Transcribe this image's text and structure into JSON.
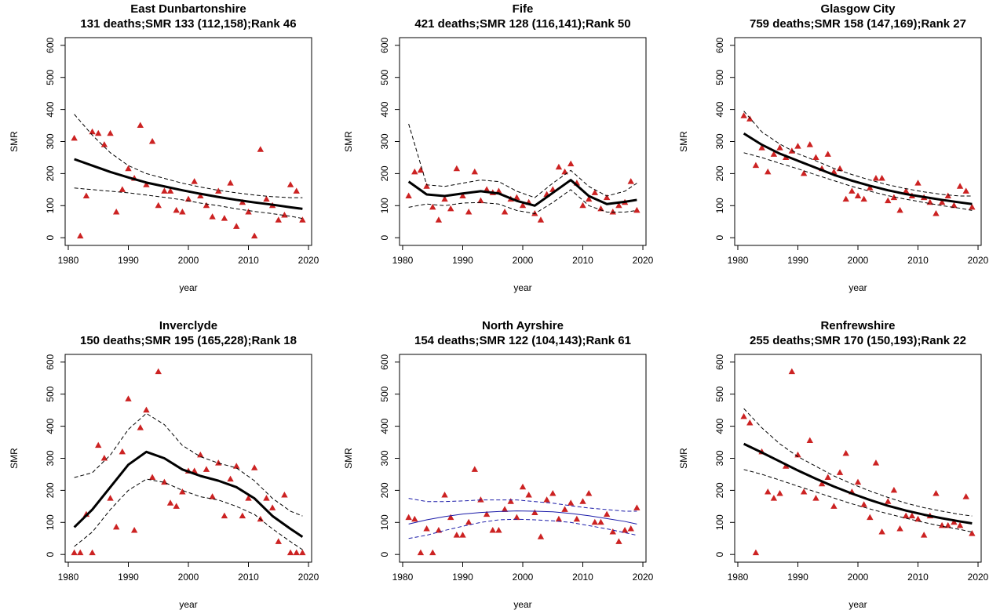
{
  "chart_data": [
    {
      "type": "scatter",
      "title": "East Dunbartonshire",
      "subtitle": "131 deaths;SMR 133 (112,158);Rank 46",
      "xlabel": "year",
      "ylabel": "SMR",
      "marker_color": "#cc2222",
      "x": [
        1981,
        1982,
        1983,
        1984,
        1985,
        1986,
        1987,
        1988,
        1989,
        1990,
        1991,
        1992,
        1993,
        1994,
        1995,
        1996,
        1997,
        1998,
        1999,
        2000,
        2001,
        2002,
        2003,
        2004,
        2005,
        2006,
        2007,
        2008,
        2009,
        2010,
        2011,
        2012,
        2013,
        2014,
        2015,
        2016,
        2017,
        2018,
        2019
      ],
      "values": [
        310,
        5,
        130,
        330,
        325,
        290,
        325,
        80,
        150,
        215,
        185,
        350,
        165,
        300,
        100,
        145,
        145,
        85,
        80,
        120,
        175,
        130,
        100,
        65,
        145,
        60,
        170,
        35,
        110,
        80,
        5,
        275,
        120,
        100,
        55,
        70,
        165,
        145,
        55
      ],
      "fit": {
        "x": [
          1981,
          1984,
          1987,
          1990,
          1993,
          1996,
          1999,
          2002,
          2005,
          2008,
          2011,
          2014,
          2017,
          2019
        ],
        "series": [
          {
            "color": "#000000",
            "width": 3,
            "dash": false,
            "values": [
              245,
              225,
              205,
              188,
              172,
              160,
              148,
              137,
              127,
              118,
              110,
              103,
              95,
              90
            ]
          },
          {
            "color": "#000000",
            "width": 1,
            "dash": true,
            "values": [
              385,
              320,
              265,
              225,
              200,
              185,
              170,
              158,
              148,
              140,
              133,
              128,
              125,
              125
            ]
          },
          {
            "color": "#000000",
            "width": 1,
            "dash": true,
            "values": [
              155,
              150,
              145,
              140,
              133,
              126,
              118,
              108,
              100,
              90,
              82,
              75,
              67,
              60
            ]
          }
        ]
      },
      "xlim": [
        1979.48,
        2020.52
      ],
      "ylim": [
        -24,
        624
      ],
      "xticks": [
        1980,
        1990,
        2000,
        2010,
        2020
      ],
      "yticks": [
        0,
        100,
        200,
        300,
        400,
        500,
        600
      ]
    },
    {
      "type": "scatter",
      "title": "Fife",
      "subtitle": "421 deaths;SMR 128 (116,141);Rank 50",
      "xlabel": "year",
      "ylabel": "SMR",
      "marker_color": "#cc2222",
      "x": [
        1981,
        1982,
        1983,
        1984,
        1985,
        1986,
        1987,
        1988,
        1989,
        1990,
        1991,
        1992,
        1993,
        1994,
        1995,
        1996,
        1997,
        1998,
        1999,
        2000,
        2001,
        2002,
        2003,
        2004,
        2005,
        2006,
        2007,
        2008,
        2009,
        2010,
        2011,
        2012,
        2013,
        2014,
        2015,
        2016,
        2017,
        2018,
        2019
      ],
      "values": [
        130,
        205,
        210,
        160,
        95,
        55,
        120,
        90,
        215,
        130,
        80,
        205,
        115,
        150,
        140,
        145,
        80,
        120,
        125,
        100,
        110,
        75,
        55,
        135,
        150,
        220,
        205,
        230,
        170,
        100,
        120,
        140,
        90,
        125,
        80,
        100,
        110,
        175,
        85
      ],
      "fit": {
        "x": [
          1981,
          1984,
          1987,
          1990,
          1993,
          1996,
          1999,
          2002,
          2005,
          2008,
          2011,
          2014,
          2017,
          2019
        ],
        "series": [
          {
            "color": "#000000",
            "width": 3,
            "dash": false,
            "values": [
              175,
              135,
              130,
              138,
              145,
              138,
              115,
              100,
              140,
              180,
              130,
              105,
              112,
              118
            ]
          },
          {
            "color": "#000000",
            "width": 1,
            "dash": true,
            "values": [
              355,
              165,
              160,
              170,
              180,
              175,
              145,
              125,
              170,
              210,
              160,
              130,
              145,
              170
            ]
          },
          {
            "color": "#000000",
            "width": 1,
            "dash": true,
            "values": [
              95,
              105,
              100,
              108,
              110,
              105,
              85,
              75,
              110,
              150,
              100,
              80,
              80,
              85
            ]
          }
        ]
      },
      "xlim": [
        1979.48,
        2020.52
      ],
      "ylim": [
        -24,
        624
      ],
      "xticks": [
        1980,
        1990,
        2000,
        2010,
        2020
      ],
      "yticks": [
        0,
        100,
        200,
        300,
        400,
        500,
        600
      ]
    },
    {
      "type": "scatter",
      "title": "Glasgow City",
      "subtitle": "759 deaths;SMR 158 (147,169);Rank 27",
      "xlabel": "year",
      "ylabel": "SMR",
      "marker_color": "#cc2222",
      "x": [
        1981,
        1982,
        1983,
        1984,
        1985,
        1986,
        1987,
        1988,
        1989,
        1990,
        1991,
        1992,
        1993,
        1994,
        1995,
        1996,
        1997,
        1998,
        1999,
        2000,
        2001,
        2002,
        2003,
        2004,
        2005,
        2006,
        2007,
        2008,
        2009,
        2010,
        2011,
        2012,
        2013,
        2014,
        2015,
        2016,
        2017,
        2018,
        2019
      ],
      "values": [
        380,
        370,
        225,
        280,
        205,
        260,
        280,
        250,
        270,
        285,
        200,
        290,
        250,
        215,
        260,
        205,
        215,
        120,
        145,
        130,
        120,
        155,
        185,
        185,
        115,
        125,
        85,
        145,
        130,
        170,
        125,
        110,
        75,
        110,
        130,
        100,
        160,
        145,
        95
      ],
      "fit": {
        "x": [
          1981,
          1984,
          1987,
          1990,
          1993,
          1996,
          1999,
          2002,
          2005,
          2008,
          2011,
          2014,
          2017,
          2019
        ],
        "series": [
          {
            "color": "#000000",
            "width": 3,
            "dash": false,
            "values": [
              325,
              290,
              262,
              240,
              218,
              196,
              178,
              162,
              148,
              136,
              127,
              118,
              110,
              105
            ]
          },
          {
            "color": "#000000",
            "width": 1,
            "dash": true,
            "values": [
              395,
              330,
              292,
              262,
              240,
              216,
              197,
              180,
              165,
              153,
              143,
              135,
              130,
              130
            ]
          },
          {
            "color": "#000000",
            "width": 1,
            "dash": true,
            "values": [
              265,
              250,
              232,
              215,
              196,
              178,
              160,
              145,
              131,
              120,
              110,
              100,
              92,
              85
            ]
          }
        ]
      },
      "xlim": [
        1979.48,
        2020.52
      ],
      "ylim": [
        -24,
        624
      ],
      "xticks": [
        1980,
        1990,
        2000,
        2010,
        2020
      ],
      "yticks": [
        0,
        100,
        200,
        300,
        400,
        500,
        600
      ]
    },
    {
      "type": "scatter",
      "title": "Inverclyde",
      "subtitle": "150 deaths;SMR 195 (165,228);Rank 18",
      "xlabel": "year",
      "ylabel": "SMR",
      "marker_color": "#cc2222",
      "x": [
        1981,
        1982,
        1983,
        1984,
        1985,
        1986,
        1987,
        1988,
        1989,
        1990,
        1991,
        1992,
        1993,
        1994,
        1995,
        1996,
        1997,
        1998,
        1999,
        2000,
        2001,
        2002,
        2003,
        2004,
        2005,
        2006,
        2007,
        2008,
        2009,
        2010,
        2011,
        2012,
        2013,
        2014,
        2015,
        2016,
        2017,
        2018,
        2019
      ],
      "values": [
        5,
        5,
        125,
        5,
        340,
        300,
        175,
        85,
        320,
        485,
        75,
        395,
        450,
        240,
        570,
        225,
        160,
        150,
        195,
        260,
        260,
        310,
        265,
        180,
        285,
        120,
        235,
        275,
        120,
        175,
        270,
        110,
        175,
        145,
        40,
        185,
        5,
        5,
        5
      ],
      "fit": {
        "x": [
          1981,
          1984,
          1987,
          1990,
          1993,
          1996,
          1999,
          2002,
          2005,
          2008,
          2011,
          2014,
          2017,
          2019
        ],
        "series": [
          {
            "color": "#000000",
            "width": 3,
            "dash": false,
            "values": [
              85,
              140,
              210,
              280,
              320,
              300,
              265,
              245,
              230,
              210,
              175,
              120,
              80,
              55
            ]
          },
          {
            "color": "#000000",
            "width": 1,
            "dash": true,
            "values": [
              240,
              255,
              310,
              390,
              440,
              405,
              340,
              305,
              285,
              270,
              230,
              175,
              135,
              120
            ]
          },
          {
            "color": "#000000",
            "width": 1,
            "dash": true,
            "values": [
              25,
              70,
              140,
              200,
              235,
              225,
              200,
              180,
              170,
              150,
              125,
              80,
              40,
              15
            ]
          }
        ]
      },
      "xlim": [
        1979.48,
        2020.52
      ],
      "ylim": [
        -24,
        624
      ],
      "xticks": [
        1980,
        1990,
        2000,
        2010,
        2020
      ],
      "yticks": [
        0,
        100,
        200,
        300,
        400,
        500,
        600
      ]
    },
    {
      "type": "scatter",
      "title": "North Ayrshire",
      "subtitle": "154 deaths;SMR 122 (104,143);Rank 61",
      "xlabel": "year",
      "ylabel": "SMR",
      "marker_color": "#cc2222",
      "x": [
        1981,
        1982,
        1983,
        1984,
        1985,
        1986,
        1987,
        1988,
        1989,
        1990,
        1991,
        1992,
        1993,
        1994,
        1995,
        1996,
        1997,
        1998,
        1999,
        2000,
        2001,
        2002,
        2003,
        2004,
        2005,
        2006,
        2007,
        2008,
        2009,
        2010,
        2011,
        2012,
        2013,
        2014,
        2015,
        2016,
        2017,
        2018,
        2019
      ],
      "values": [
        115,
        110,
        5,
        80,
        5,
        75,
        185,
        115,
        60,
        60,
        100,
        265,
        170,
        125,
        75,
        75,
        140,
        165,
        115,
        210,
        185,
        130,
        55,
        170,
        190,
        110,
        140,
        160,
        110,
        165,
        190,
        100,
        100,
        125,
        70,
        40,
        75,
        80,
        145
      ],
      "fit": {
        "x": [
          1981,
          1984,
          1987,
          1990,
          1993,
          1996,
          1999,
          2002,
          2005,
          2008,
          2011,
          2014,
          2017,
          2019
        ],
        "series": [
          {
            "color": "#1a1aa8",
            "width": 1,
            "dash": false,
            "values": [
              95,
              108,
              118,
              126,
              131,
              134,
              136,
              135,
              133,
              128,
              121,
              112,
              103,
              95
            ]
          },
          {
            "color": "#1a1aa8",
            "width": 1,
            "dash": true,
            "values": [
              175,
              165,
              165,
              167,
              170,
              170,
              170,
              165,
              160,
              152,
              145,
              140,
              135,
              135
            ]
          },
          {
            "color": "#1a1aa8",
            "width": 1,
            "dash": true,
            "values": [
              50,
              60,
              75,
              88,
              100,
              108,
              110,
              108,
              105,
              100,
              90,
              80,
              68,
              60
            ]
          }
        ]
      },
      "xlim": [
        1979.48,
        2020.52
      ],
      "ylim": [
        -24,
        624
      ],
      "xticks": [
        1980,
        1990,
        2000,
        2010,
        2020
      ],
      "yticks": [
        0,
        100,
        200,
        300,
        400,
        500,
        600
      ]
    },
    {
      "type": "scatter",
      "title": "Renfrewshire",
      "subtitle": "255 deaths;SMR 170 (150,193);Rank 22",
      "xlabel": "year",
      "ylabel": "SMR",
      "marker_color": "#cc2222",
      "x": [
        1981,
        1982,
        1983,
        1984,
        1985,
        1986,
        1987,
        1988,
        1989,
        1990,
        1991,
        1992,
        1993,
        1994,
        1995,
        1996,
        1997,
        1998,
        1999,
        2000,
        2001,
        2002,
        2003,
        2004,
        2005,
        2006,
        2007,
        2008,
        2009,
        2010,
        2011,
        2012,
        2013,
        2014,
        2015,
        2016,
        2017,
        2018,
        2019
      ],
      "values": [
        430,
        410,
        5,
        320,
        195,
        175,
        190,
        275,
        570,
        310,
        195,
        355,
        175,
        220,
        240,
        150,
        255,
        315,
        195,
        225,
        155,
        115,
        285,
        70,
        165,
        200,
        80,
        120,
        120,
        110,
        60,
        120,
        190,
        90,
        90,
        100,
        90,
        180,
        65
      ],
      "fit": {
        "x": [
          1981,
          1984,
          1987,
          1990,
          1993,
          1996,
          1999,
          2002,
          2005,
          2008,
          2011,
          2014,
          2017,
          2019
        ],
        "series": [
          {
            "color": "#000000",
            "width": 3,
            "dash": false,
            "values": [
              345,
              318,
              290,
              262,
              236,
              212,
              190,
              170,
              152,
              137,
              124,
              113,
              103,
              97
            ]
          },
          {
            "color": "#000000",
            "width": 1,
            "dash": true,
            "values": [
              455,
              395,
              345,
              305,
              275,
              245,
              220,
              198,
              178,
              160,
              146,
              135,
              125,
              120
            ]
          },
          {
            "color": "#000000",
            "width": 1,
            "dash": true,
            "values": [
              265,
              250,
              232,
              213,
              195,
              176,
              158,
              142,
              127,
              113,
              100,
              88,
              78,
              70
            ]
          }
        ]
      },
      "xlim": [
        1979.48,
        2020.52
      ],
      "ylim": [
        -24,
        624
      ],
      "xticks": [
        1980,
        1990,
        2000,
        2010,
        2020
      ],
      "yticks": [
        0,
        100,
        200,
        300,
        400,
        500,
        600
      ]
    }
  ]
}
